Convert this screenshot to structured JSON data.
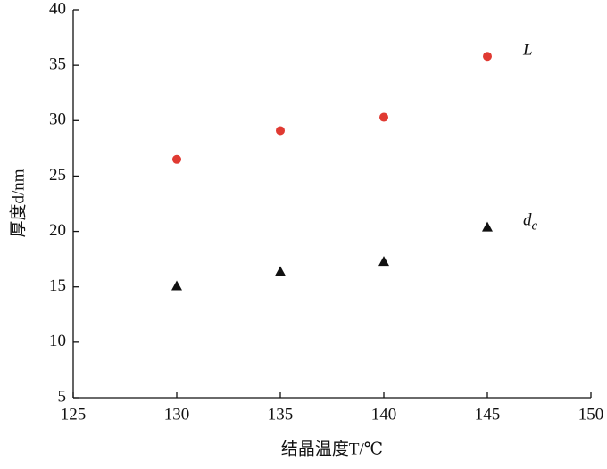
{
  "chart_data": {
    "type": "scatter",
    "xlabel": "结晶温度T/℃",
    "ylabel": "厚度d/nm",
    "xlim": [
      125,
      150
    ],
    "xticks": [
      125,
      130,
      135,
      140,
      145,
      150
    ],
    "ylim": [
      5,
      40
    ],
    "yticks": [
      5,
      10,
      15,
      20,
      25,
      30,
      35,
      40
    ],
    "series": [
      {
        "name": "L",
        "color": "#e03a32",
        "marker": "circle",
        "x": [
          130,
          135,
          140,
          145
        ],
        "values": [
          26.5,
          29.1,
          30.3,
          35.8
        ]
      },
      {
        "name": "dc",
        "color": "#111111",
        "marker": "triangle",
        "x": [
          130,
          135,
          140,
          145
        ],
        "values": [
          15.1,
          16.4,
          17.3,
          20.4
        ]
      }
    ]
  }
}
